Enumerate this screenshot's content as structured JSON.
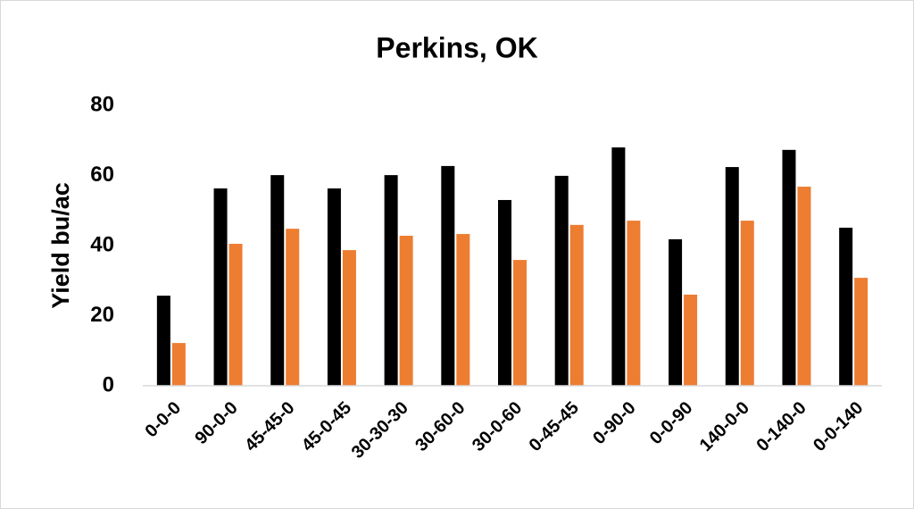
{
  "chart_data": {
    "type": "bar",
    "title": "Perkins, OK",
    "y_label": "Yield bu/ac",
    "categories": [
      "0-0-0",
      "90-0-0",
      "45-45-0",
      "45-0-45",
      "30-30-30",
      "30-60-0",
      "30-0-60",
      "0-45-45",
      "0-90-0",
      "0-0-90",
      "140-0-0",
      "0-140-0",
      "0-0-140"
    ],
    "series": [
      {
        "color": "#000000",
        "values": [
          25.7,
          56.3,
          60.1,
          56.3,
          60.1,
          62.7,
          53.0,
          59.9,
          68.0,
          41.8,
          62.4,
          67.3,
          45.1
        ]
      },
      {
        "color": "#ed7d31",
        "values": [
          12.2,
          40.5,
          44.8,
          38.7,
          42.8,
          43.3,
          35.9,
          45.9,
          47.1,
          26.0,
          47.1,
          56.8,
          30.8
        ]
      }
    ],
    "ylim": [
      0,
      80
    ],
    "yticks": [
      0,
      20,
      40,
      60,
      80
    ],
    "grid": false
  }
}
